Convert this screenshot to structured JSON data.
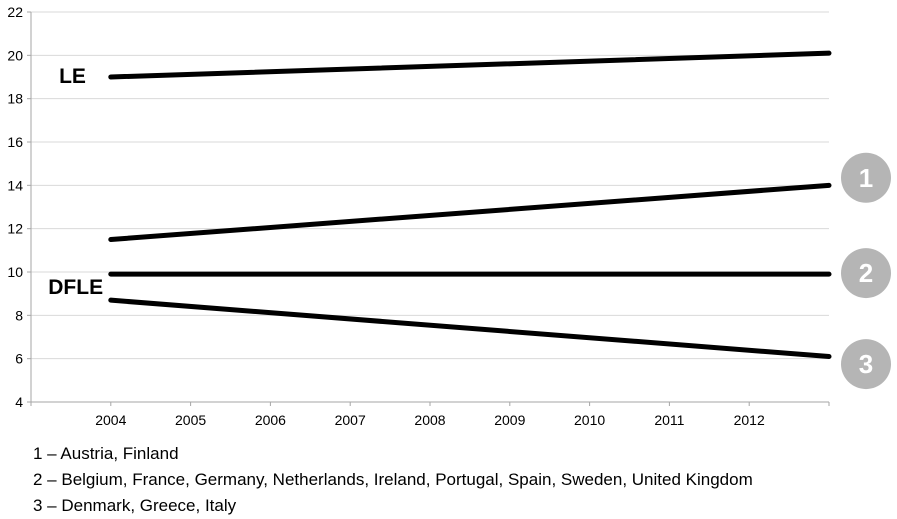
{
  "chart_data": {
    "type": "line",
    "title": "",
    "xlabel": "",
    "ylabel": "",
    "xlim": [
      2003,
      2013
    ],
    "ylim": [
      4,
      22
    ],
    "x_ticks": [
      2004,
      2005,
      2006,
      2007,
      2008,
      2009,
      2010,
      2011,
      2012
    ],
    "y_ticks": [
      4,
      6,
      8,
      10,
      12,
      14,
      16,
      18,
      20,
      22
    ],
    "grid": "horizontal",
    "legend_position": "below-left",
    "line_color": "#000000",
    "line_width": 5,
    "grid_color": "#d9d9d9",
    "axis_color": "#a6a6a6",
    "tick_label_color": "#000000",
    "badge_color": "#b5b5b5",
    "badge_text_color": "#ffffff",
    "series": [
      {
        "id": "le",
        "label": "LE",
        "x": [
          2004,
          2013
        ],
        "values": [
          19.0,
          20.1
        ]
      },
      {
        "id": "dfle-1",
        "label": "DFLE",
        "badge": "1",
        "countries": "Austria, Finland",
        "x": [
          2004,
          2013
        ],
        "values": [
          11.5,
          14.0
        ]
      },
      {
        "id": "dfle-2",
        "label": "DFLE",
        "badge": "2",
        "countries": "Belgium, France, Germany, Netherlands, Ireland, Portugal, Spain, Sweden, United Kingdom",
        "x": [
          2004,
          2013
        ],
        "values": [
          9.9,
          9.9
        ]
      },
      {
        "id": "dfle-3",
        "label": "DFLE",
        "badge": "3",
        "countries": "Denmark, Greece, Italy",
        "x": [
          2004,
          2013
        ],
        "values": [
          8.7,
          6.1
        ]
      }
    ],
    "in_plot_labels": [
      {
        "text": "LE",
        "x": 2003.52,
        "y": 19.05
      },
      {
        "text": "DFLE",
        "x": 2003.56,
        "y": 9.3
      }
    ],
    "badges": [
      {
        "label": "1",
        "y": 14.35
      },
      {
        "label": "2",
        "y": 9.95
      },
      {
        "label": "3",
        "y": 5.75
      }
    ],
    "legend_lines": [
      "1 – Austria, Finland",
      "2 – Belgium, France, Germany, Netherlands, Ireland, Portugal, Spain, Sweden, United Kingdom",
      "3 – Denmark, Greece, Italy"
    ]
  }
}
